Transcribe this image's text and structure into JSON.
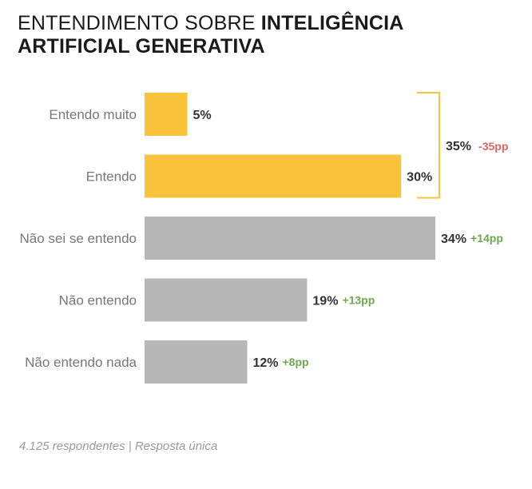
{
  "chart_data": {
    "type": "bar",
    "orientation": "horizontal",
    "title_light": "ENTENDIMENTO SOBRE ",
    "title_bold": "INTELIGÊNCIA ARTIFICIAL GENERATIVA",
    "categories": [
      "Entendo muito",
      "Entendo",
      "Não sei se entendo",
      "Não entendo",
      "Não entendo nada"
    ],
    "values": [
      5,
      30,
      34,
      19,
      12
    ],
    "value_labels": [
      "5%",
      "30%",
      "34%",
      "19%",
      "12%"
    ],
    "deltas": [
      "",
      "",
      "+14pp",
      "+13pp",
      "+8pp"
    ],
    "bar_colors": [
      "#f9c43c",
      "#f9c43c",
      "#b7b7b7",
      "#b7b7b7",
      "#b7b7b7"
    ],
    "group": {
      "indices": [
        0,
        1
      ],
      "label": "35%",
      "delta": "-35pp",
      "color": "#f9c43c"
    },
    "xlim": [
      0,
      34
    ],
    "footer": "4.125 respondentes | Resposta única"
  }
}
